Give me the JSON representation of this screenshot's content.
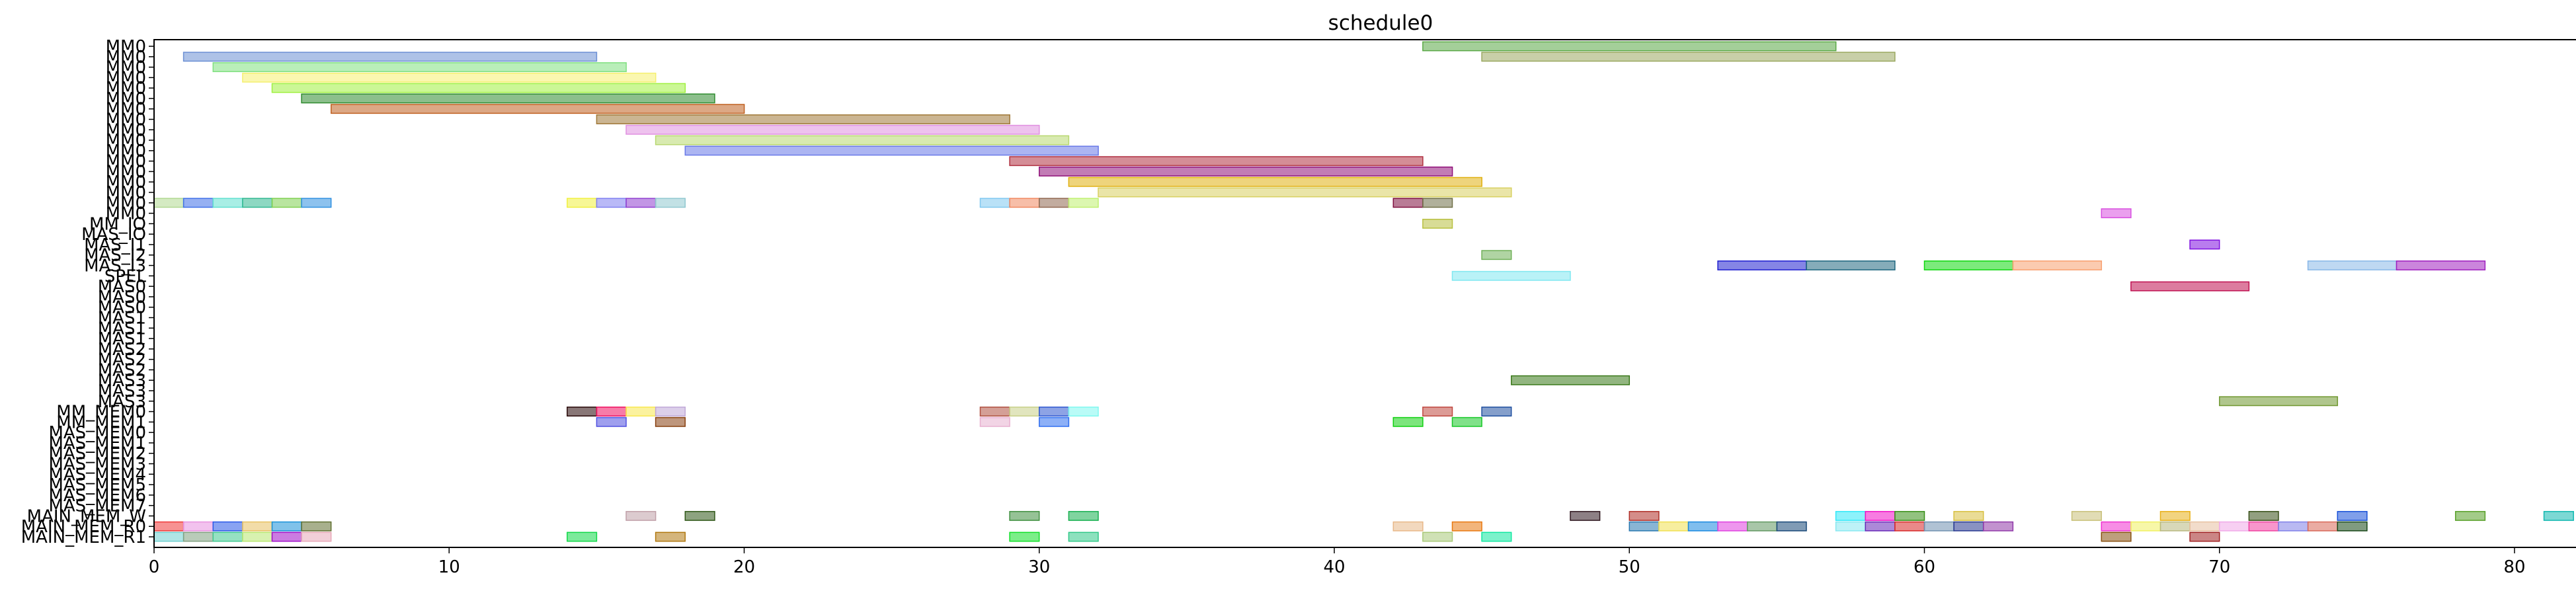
{
  "chart_data": {
    "type": "gantt",
    "title": "schedule0",
    "xlabel": "",
    "ylabel": "",
    "xlim": [
      0,
      82
    ],
    "x_ticks": [
      0,
      10,
      20,
      30,
      40,
      50,
      60,
      70,
      80
    ],
    "grid": false,
    "rows": [
      "MM0",
      "MM0",
      "MM0",
      "MM0",
      "MM0",
      "MM0",
      "MM0",
      "MM0",
      "MM0",
      "MM0",
      "MM0",
      "MM0",
      "MM0",
      "MM0",
      "MM0",
      "MM0",
      "MM0",
      "MM_IO",
      "MAS_IO",
      "MAS_I1",
      "MAS_I2",
      "MAS_I3",
      "SPEL",
      "MAS0",
      "MAS0",
      "MAS0",
      "MAS1",
      "MAS1",
      "MAS1",
      "MAS2",
      "MAS2",
      "MAS2",
      "MAS3",
      "MAS3",
      "MAS3",
      "MM_MEM0",
      "MM_MEM1",
      "MAS_MEM0",
      "MAS_MEM1",
      "MAS_MEM2",
      "MAS_MEM3",
      "MAS_MEM4",
      "MAS_MEM5",
      "MAS_MEM6",
      "MAS_MEM7",
      "MAIN_MEM_W",
      "MAIN_MEM_R0",
      "MAIN_MEM_R1"
    ],
    "tasks": [
      {
        "row": 0,
        "start": 43,
        "end": 57,
        "color": "#5aa845"
      },
      {
        "row": 1,
        "start": 1,
        "end": 15,
        "color": "#6b8fd4"
      },
      {
        "row": 1,
        "start": 45,
        "end": 59,
        "color": "#9aa860"
      },
      {
        "row": 2,
        "start": 2,
        "end": 16,
        "color": "#7fe07f"
      },
      {
        "row": 3,
        "start": 3,
        "end": 17,
        "color": "#f5f070"
      },
      {
        "row": 4,
        "start": 4,
        "end": 18,
        "color": "#a0f040"
      },
      {
        "row": 5,
        "start": 5,
        "end": 19,
        "color": "#2e8b2e"
      },
      {
        "row": 6,
        "start": 6,
        "end": 20,
        "color": "#c06020"
      },
      {
        "row": 7,
        "start": 15,
        "end": 29,
        "color": "#a07838"
      },
      {
        "row": 8,
        "start": 16,
        "end": 30,
        "color": "#e090e0"
      },
      {
        "row": 9,
        "start": 17,
        "end": 31,
        "color": "#b8d870"
      },
      {
        "row": 10,
        "start": 18,
        "end": 32,
        "color": "#6878e8"
      },
      {
        "row": 11,
        "start": 29,
        "end": 43,
        "color": "#b03040"
      },
      {
        "row": 12,
        "start": 30,
        "end": 44,
        "color": "#901078"
      },
      {
        "row": 13,
        "start": 31,
        "end": 45,
        "color": "#e0b010"
      },
      {
        "row": 14,
        "start": 32,
        "end": 46,
        "color": "#d8d060"
      },
      {
        "row": 15,
        "start": 0,
        "end": 1,
        "color": "#b0d890"
      },
      {
        "row": 15,
        "start": 1,
        "end": 2,
        "color": "#4070e8"
      },
      {
        "row": 15,
        "start": 2,
        "end": 3,
        "color": "#60e0d0"
      },
      {
        "row": 15,
        "start": 3,
        "end": 4,
        "color": "#30b890"
      },
      {
        "row": 15,
        "start": 4,
        "end": 5,
        "color": "#80d050"
      },
      {
        "row": 15,
        "start": 5,
        "end": 6,
        "color": "#3090e0"
      },
      {
        "row": 15,
        "start": 14,
        "end": 15,
        "color": "#f0f040"
      },
      {
        "row": 15,
        "start": 15,
        "end": 16,
        "color": "#8080f0"
      },
      {
        "row": 15,
        "start": 16,
        "end": 17,
        "color": "#9040d0"
      },
      {
        "row": 15,
        "start": 17,
        "end": 18,
        "color": "#90c8d0"
      },
      {
        "row": 15,
        "start": 28,
        "end": 29,
        "color": "#80c8f0"
      },
      {
        "row": 15,
        "start": 29,
        "end": 30,
        "color": "#f08860"
      },
      {
        "row": 15,
        "start": 30,
        "end": 31,
        "color": "#906850"
      },
      {
        "row": 15,
        "start": 31,
        "end": 32,
        "color": "#c0f070"
      },
      {
        "row": 15,
        "start": 42,
        "end": 43,
        "color": "#801040"
      },
      {
        "row": 15,
        "start": 43,
        "end": 44,
        "color": "#707048"
      },
      {
        "row": 16,
        "start": 66,
        "end": 67,
        "color": "#d850e0"
      },
      {
        "row": 17,
        "start": 43,
        "end": 44,
        "color": "#b8c040"
      },
      {
        "row": 19,
        "start": 69,
        "end": 70,
        "color": "#8010e0"
      },
      {
        "row": 20,
        "start": 45,
        "end": 46,
        "color": "#70b058"
      },
      {
        "row": 21,
        "start": 53,
        "end": 56,
        "color": "#2020d0"
      },
      {
        "row": 21,
        "start": 56,
        "end": 59,
        "color": "#206880"
      },
      {
        "row": 21,
        "start": 60,
        "end": 63,
        "color": "#10d810"
      },
      {
        "row": 21,
        "start": 63,
        "end": 66,
        "color": "#f8a070"
      },
      {
        "row": 21,
        "start": 73,
        "end": 76,
        "color": "#88b8e8"
      },
      {
        "row": 21,
        "start": 76,
        "end": 79,
        "color": "#a020c0"
      },
      {
        "row": 22,
        "start": 44,
        "end": 48,
        "color": "#80e8f0"
      },
      {
        "row": 23,
        "start": 67,
        "end": 71,
        "color": "#c01050"
      },
      {
        "row": 32,
        "start": 46,
        "end": 50,
        "color": "#387818"
      },
      {
        "row": 34,
        "start": 70,
        "end": 74,
        "color": "#709830"
      },
      {
        "row": 35,
        "start": 14,
        "end": 15,
        "color": "#280808"
      },
      {
        "row": 35,
        "start": 15,
        "end": 16,
        "color": "#f01060"
      },
      {
        "row": 35,
        "start": 16,
        "end": 17,
        "color": "#f8e850"
      },
      {
        "row": 35,
        "start": 17,
        "end": 18,
        "color": "#c0a8d8"
      },
      {
        "row": 35,
        "start": 28,
        "end": 29,
        "color": "#b05040"
      },
      {
        "row": 35,
        "start": 29,
        "end": 30,
        "color": "#c8d088"
      },
      {
        "row": 35,
        "start": 30,
        "end": 31,
        "color": "#3058d0"
      },
      {
        "row": 35,
        "start": 31,
        "end": 32,
        "color": "#80f8f0"
      },
      {
        "row": 35,
        "start": 43,
        "end": 44,
        "color": "#c04840"
      },
      {
        "row": 35,
        "start": 45,
        "end": 46,
        "color": "#2050a0"
      },
      {
        "row": 36,
        "start": 15,
        "end": 16,
        "color": "#5050e0"
      },
      {
        "row": 36,
        "start": 17,
        "end": 18,
        "color": "#884010"
      },
      {
        "row": 36,
        "start": 28,
        "end": 29,
        "color": "#e8b0d0"
      },
      {
        "row": 36,
        "start": 30,
        "end": 31,
        "color": "#3070f0"
      },
      {
        "row": 36,
        "start": 42,
        "end": 43,
        "color": "#10d010"
      },
      {
        "row": 36,
        "start": 44,
        "end": 45,
        "color": "#18c828"
      },
      {
        "row": 45,
        "start": 16,
        "end": 17,
        "color": "#c0a0a8"
      },
      {
        "row": 45,
        "start": 18,
        "end": 19,
        "color": "#305818"
      },
      {
        "row": 45,
        "start": 29,
        "end": 30,
        "color": "#409040"
      },
      {
        "row": 45,
        "start": 31,
        "end": 32,
        "color": "#18b050"
      },
      {
        "row": 45,
        "start": 48,
        "end": 49,
        "color": "#301820"
      },
      {
        "row": 45,
        "start": 50,
        "end": 51,
        "color": "#b03028"
      },
      {
        "row": 45,
        "start": 57,
        "end": 58,
        "color": "#30e8f8"
      },
      {
        "row": 45,
        "start": 58,
        "end": 59,
        "color": "#f010c8"
      },
      {
        "row": 45,
        "start": 59,
        "end": 60,
        "color": "#389018"
      },
      {
        "row": 45,
        "start": 61,
        "end": 62,
        "color": "#d8c040"
      },
      {
        "row": 45,
        "start": 65,
        "end": 66,
        "color": "#c8c078"
      },
      {
        "row": 45,
        "start": 68,
        "end": 69,
        "color": "#e8b018"
      },
      {
        "row": 45,
        "start": 71,
        "end": 72,
        "color": "#385018"
      },
      {
        "row": 45,
        "start": 74,
        "end": 75,
        "color": "#1850d8"
      },
      {
        "row": 45,
        "start": 78,
        "end": 79,
        "color": "#58a028"
      },
      {
        "row": 45,
        "start": 81,
        "end": 82,
        "color": "#10b8b0"
      },
      {
        "row": 46,
        "start": 0,
        "end": 1,
        "color": "#f03838"
      },
      {
        "row": 46,
        "start": 1,
        "end": 2,
        "color": "#e890e0"
      },
      {
        "row": 46,
        "start": 2,
        "end": 3,
        "color": "#2858e8"
      },
      {
        "row": 46,
        "start": 3,
        "end": 4,
        "color": "#e8c060"
      },
      {
        "row": 46,
        "start": 4,
        "end": 5,
        "color": "#1890d8"
      },
      {
        "row": 46,
        "start": 5,
        "end": 6,
        "color": "#607030"
      },
      {
        "row": 46,
        "start": 42,
        "end": 43,
        "color": "#e8b888"
      },
      {
        "row": 46,
        "start": 44,
        "end": 45,
        "color": "#e87810"
      },
      {
        "row": 46,
        "start": 50,
        "end": 51,
        "color": "#2878b0"
      },
      {
        "row": 46,
        "start": 51,
        "end": 52,
        "color": "#f0e050"
      },
      {
        "row": 46,
        "start": 52,
        "end": 53,
        "color": "#1888e0"
      },
      {
        "row": 46,
        "start": 53,
        "end": 54,
        "color": "#e040e0"
      },
      {
        "row": 46,
        "start": 54,
        "end": 55,
        "color": "#609860"
      },
      {
        "row": 46,
        "start": 55,
        "end": 56,
        "color": "#184878"
      },
      {
        "row": 46,
        "start": 57,
        "end": 58,
        "color": "#88e8f0"
      },
      {
        "row": 46,
        "start": 58,
        "end": 59,
        "color": "#6828b8"
      },
      {
        "row": 46,
        "start": 59,
        "end": 60,
        "color": "#d82828"
      },
      {
        "row": 46,
        "start": 60,
        "end": 61,
        "color": "#7090b0"
      },
      {
        "row": 46,
        "start": 61,
        "end": 62,
        "color": "#283890"
      },
      {
        "row": 46,
        "start": 62,
        "end": 63,
        "color": "#9038a8"
      },
      {
        "row": 46,
        "start": 66,
        "end": 67,
        "color": "#f030d0"
      },
      {
        "row": 46,
        "start": 67,
        "end": 68,
        "color": "#f0f060"
      },
      {
        "row": 46,
        "start": 68,
        "end": 69,
        "color": "#b8b880"
      },
      {
        "row": 46,
        "start": 69,
        "end": 70,
        "color": "#e8c0a0"
      },
      {
        "row": 46,
        "start": 70,
        "end": 71,
        "color": "#f0a8e8"
      },
      {
        "row": 46,
        "start": 71,
        "end": 72,
        "color": "#f040a0"
      },
      {
        "row": 46,
        "start": 72,
        "end": 73,
        "color": "#8080e8"
      },
      {
        "row": 46,
        "start": 73,
        "end": 74,
        "color": "#d86858"
      },
      {
        "row": 46,
        "start": 74,
        "end": 75,
        "color": "#184818"
      },
      {
        "row": 47,
        "start": 0,
        "end": 1,
        "color": "#70d0d0"
      },
      {
        "row": 47,
        "start": 1,
        "end": 2,
        "color": "#80a080"
      },
      {
        "row": 47,
        "start": 2,
        "end": 3,
        "color": "#40c890"
      },
      {
        "row": 47,
        "start": 3,
        "end": 4,
        "color": "#b8e870"
      },
      {
        "row": 47,
        "start": 4,
        "end": 5,
        "color": "#a010c8"
      },
      {
        "row": 47,
        "start": 5,
        "end": 6,
        "color": "#e8a8b8"
      },
      {
        "row": 47,
        "start": 14,
        "end": 15,
        "color": "#10d848"
      },
      {
        "row": 47,
        "start": 17,
        "end": 18,
        "color": "#b07810"
      },
      {
        "row": 47,
        "start": 29,
        "end": 30,
        "color": "#10e028"
      },
      {
        "row": 47,
        "start": 31,
        "end": 32,
        "color": "#30c888"
      },
      {
        "row": 47,
        "start": 43,
        "end": 44,
        "color": "#a8c878"
      },
      {
        "row": 47,
        "start": 45,
        "end": 46,
        "color": "#10e8a0"
      },
      {
        "row": 47,
        "start": 66,
        "end": 67,
        "color": "#885010"
      },
      {
        "row": 47,
        "start": 69,
        "end": 70,
        "color": "#a02020"
      }
    ]
  }
}
